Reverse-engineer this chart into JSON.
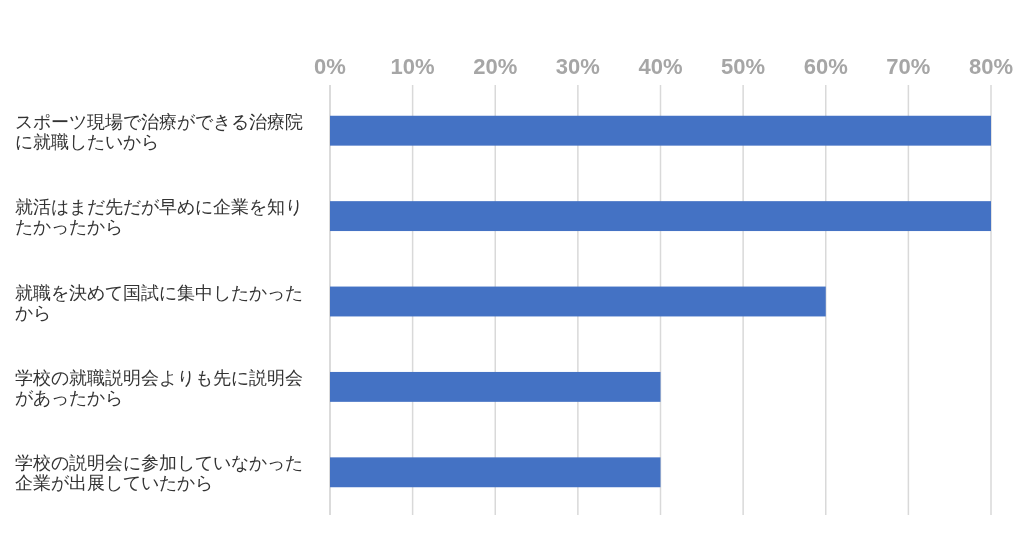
{
  "chart_data": {
    "type": "bar",
    "orientation": "horizontal",
    "categories": [
      "スポーツ現場で治療ができる治療院に就職したいから",
      "就活はまだ先だが早めに企業を知りたかったから",
      "就職を決めて国試に集中したかったから",
      "学校の就職説明会よりも先に説明会があったから",
      "学校の説明会に参加していなかった企業が出展していたから"
    ],
    "values": [
      80,
      80,
      60,
      40,
      40
    ],
    "color": "#4472c4",
    "xlim": [
      0,
      80
    ],
    "xticks": [
      {
        "value": 0,
        "label": "0%"
      },
      {
        "value": 10,
        "label": "10%"
      },
      {
        "value": 20,
        "label": "20%"
      },
      {
        "value": 30,
        "label": "30%"
      },
      {
        "value": 40,
        "label": "40%"
      },
      {
        "value": 50,
        "label": "50%"
      },
      {
        "value": 60,
        "label": "60%"
      },
      {
        "value": 70,
        "label": "70%"
      },
      {
        "value": 80,
        "label": "80%"
      }
    ],
    "grid": "x"
  }
}
